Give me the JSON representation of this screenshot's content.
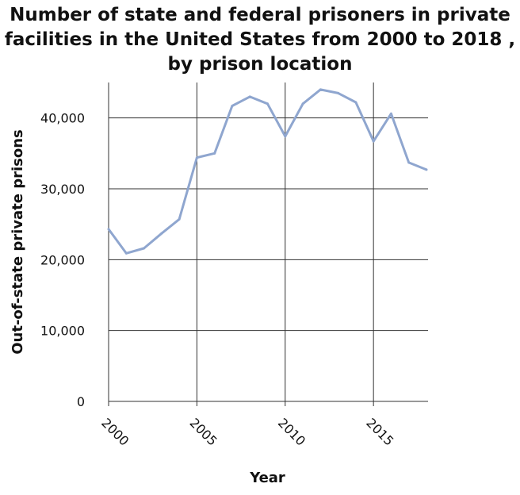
{
  "chart_data": {
    "type": "line",
    "title": "Number of state and federal prisoners in private facilities in the United States from 2000 to 2018 , by prison location",
    "xlabel": "Year",
    "ylabel": "Out-of-state private prisons",
    "xlim": [
      2000,
      2018
    ],
    "ylim": [
      0,
      45000
    ],
    "x_ticks": [
      2000,
      2005,
      2010,
      2015
    ],
    "y_ticks": [
      0,
      10000,
      20000,
      30000,
      40000
    ],
    "y_tick_labels": [
      "0",
      "10,000",
      "20,000",
      "30,000",
      "40,000"
    ],
    "grid": true,
    "line_color": "#8fa6cf",
    "x": [
      2000,
      2001,
      2002,
      2003,
      2004,
      2005,
      2006,
      2007,
      2008,
      2009,
      2010,
      2011,
      2012,
      2013,
      2014,
      2015,
      2016,
      2017,
      2018
    ],
    "values": [
      24300,
      20900,
      21600,
      23700,
      25700,
      34400,
      35000,
      41700,
      43000,
      42000,
      37400,
      42000,
      44000,
      43500,
      42200,
      36700,
      40600,
      33700,
      32700
    ]
  }
}
